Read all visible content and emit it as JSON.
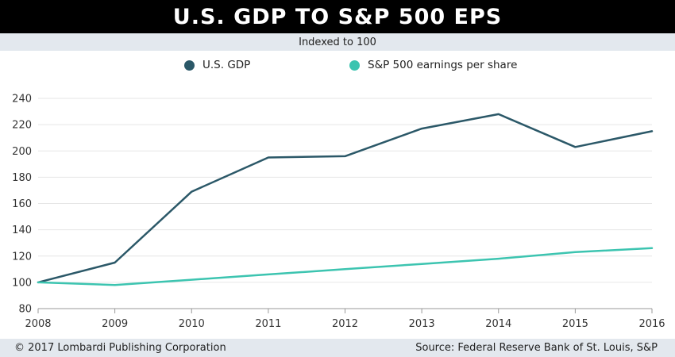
{
  "header": {
    "title": "U.S. GDP TO S&P 500 EPS",
    "subtitle": "Indexed to 100"
  },
  "footer": {
    "copyright": "© 2017 Lombardi Publishing Corporation",
    "source": "Source: Federal Reserve Bank of St. Louis, S&P"
  },
  "colors": {
    "gdp": "#2b5868",
    "eps": "#3cc4b0",
    "grid": "#e6e6e6",
    "axis": "#999999"
  },
  "chart_data": {
    "type": "line",
    "title": "U.S. GDP TO S&P 500 EPS",
    "subtitle": "Indexed to 100",
    "x": [
      2008,
      2009,
      2010,
      2011,
      2012,
      2013,
      2014,
      2015,
      2016
    ],
    "xticks": [
      "2008",
      "2009",
      "2010",
      "2011",
      "2012",
      "2013",
      "2014",
      "2015",
      "2016"
    ],
    "ylim": [
      80,
      240
    ],
    "yticks": [
      "80",
      "100",
      "120",
      "140",
      "160",
      "180",
      "200",
      "220",
      "240"
    ],
    "grid": true,
    "legend_position": "top",
    "series": [
      {
        "name": "U.S. GDP",
        "color": "#2b5868",
        "values": [
          100,
          115,
          169,
          195,
          196,
          217,
          228,
          203,
          215
        ]
      },
      {
        "name": "S&P 500 earnings per share",
        "color": "#3cc4b0",
        "values": [
          100,
          98,
          102,
          106,
          110,
          114,
          118,
          123,
          126
        ]
      }
    ]
  }
}
